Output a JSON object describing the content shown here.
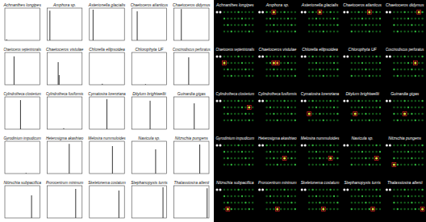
{
  "chart_data": [
    {
      "type": "bar",
      "title": "Achnanthes longipes",
      "x": [
        2
      ],
      "values": [
        3
      ],
      "xlim": [
        0,
        38
      ],
      "ylim": [
        0,
        100
      ],
      "color": "#3a3a3a",
      "tick_labels": false
    },
    {
      "type": "bar",
      "title": "Amphora sp.",
      "x": [
        3
      ],
      "values": [
        92
      ],
      "xlim": [
        0,
        38
      ],
      "ylim": [
        0,
        100
      ],
      "color": "#3a3a3a",
      "tick_labels": false
    },
    {
      "type": "bar",
      "title": "Asterionella glacialis",
      "x": [
        4
      ],
      "values": [
        95
      ],
      "xlim": [
        0,
        38
      ],
      "ylim": [
        0,
        100
      ],
      "color": "#3a3a3a",
      "tick_labels": false
    },
    {
      "type": "bar",
      "title": "Chaetoceros atlanticus",
      "x": [
        6
      ],
      "values": [
        90
      ],
      "xlim": [
        0,
        38
      ],
      "ylim": [
        0,
        100
      ],
      "color": "#3a3a3a",
      "tick_labels": false
    },
    {
      "type": "bar",
      "title": "Chaetoceros didymus",
      "x": [
        8
      ],
      "values": [
        97
      ],
      "xlim": [
        0,
        38
      ],
      "ylim": [
        0,
        100
      ],
      "color": "#3a3a3a",
      "tick_labels": false
    },
    {
      "type": "bar",
      "title": "Chaetoceros septentrionalis",
      "x": [
        10
      ],
      "values": [
        88
      ],
      "xlim": [
        0,
        38
      ],
      "ylim": [
        0,
        100
      ],
      "color": "#3a3a3a",
      "tick_labels": false
    },
    {
      "type": "bar",
      "title": "Chaetoceros vistulae",
      "x": [
        12,
        13
      ],
      "values": [
        70,
        30
      ],
      "xlim": [
        0,
        38
      ],
      "ylim": [
        0,
        100
      ],
      "color": "#3a3a3a",
      "tick_labels": false
    },
    {
      "type": "bar",
      "title": "Chlorella ellipsoidea",
      "x": [
        14
      ],
      "values": [
        3
      ],
      "xlim": [
        0,
        38
      ],
      "ylim": [
        0,
        100
      ],
      "color": "#3a3a3a",
      "tick_labels": false
    },
    {
      "type": "bar",
      "title": "Chlorophyta UF",
      "x": [
        15
      ],
      "values": [
        2
      ],
      "xlim": [
        0,
        38
      ],
      "ylim": [
        0,
        100
      ],
      "color": "#3a3a3a",
      "tick_labels": false
    },
    {
      "type": "bar",
      "title": "Coscinodiscus perforatus",
      "x": [
        16
      ],
      "values": [
        85
      ],
      "xlim": [
        0,
        38
      ],
      "ylim": [
        0,
        100
      ],
      "color": "#3a3a3a",
      "tick_labels": false
    },
    {
      "type": "bar",
      "title": "Cylindrotheca closterium",
      "x": [
        17
      ],
      "values": [
        90
      ],
      "xlim": [
        0,
        38
      ],
      "ylim": [
        0,
        100
      ],
      "color": "#3a3a3a",
      "tick_labels": false
    },
    {
      "type": "bar",
      "title": "Cylindrotheca fusiformis",
      "x": [
        18
      ],
      "values": [
        3
      ],
      "xlim": [
        0,
        38
      ],
      "ylim": [
        0,
        100
      ],
      "color": "#3a3a3a",
      "tick_labels": false
    },
    {
      "type": "bar",
      "title": "Cymatosira lorenziana",
      "x": [
        19
      ],
      "values": [
        93
      ],
      "xlim": [
        0,
        38
      ],
      "ylim": [
        0,
        100
      ],
      "color": "#3a3a3a",
      "tick_labels": false
    },
    {
      "type": "bar",
      "title": "Ditylum brightwellii",
      "x": [
        20
      ],
      "values": [
        88
      ],
      "xlim": [
        0,
        38
      ],
      "ylim": [
        0,
        100
      ],
      "color": "#3a3a3a",
      "tick_labels": false
    },
    {
      "type": "bar",
      "title": "Guinardia gigas",
      "x": [
        22
      ],
      "values": [
        80
      ],
      "xlim": [
        0,
        38
      ],
      "ylim": [
        0,
        100
      ],
      "color": "#3a3a3a",
      "tick_labels": false
    },
    {
      "type": "bar",
      "title": "Gyrodinium impudicum",
      "x": [
        23
      ],
      "values": [
        2
      ],
      "xlim": [
        0,
        38
      ],
      "ylim": [
        0,
        100
      ],
      "color": "#3a3a3a",
      "tick_labels": false
    },
    {
      "type": "bar",
      "title": "Heterosigma akashiwo",
      "x": [
        24
      ],
      "values": [
        92
      ],
      "xlim": [
        0,
        38
      ],
      "ylim": [
        0,
        100
      ],
      "color": "#3a3a3a",
      "tick_labels": false
    },
    {
      "type": "bar",
      "title": "Melosira nummuloides",
      "x": [
        25
      ],
      "values": [
        85
      ],
      "xlim": [
        0,
        38
      ],
      "ylim": [
        0,
        100
      ],
      "color": "#3a3a3a",
      "tick_labels": false
    },
    {
      "type": "bar",
      "title": "Navicula sp.",
      "x": [
        26
      ],
      "values": [
        75
      ],
      "xlim": [
        0,
        38
      ],
      "ylim": [
        0,
        100
      ],
      "color": "#3a3a3a",
      "tick_labels": false
    },
    {
      "type": "bar",
      "title": "Nitzschia pungens",
      "x": [
        28
      ],
      "values": [
        90
      ],
      "xlim": [
        0,
        38
      ],
      "ylim": [
        0,
        100
      ],
      "color": "#3a3a3a",
      "tick_labels": false
    },
    {
      "type": "bar",
      "title": "Nitzschia subpacifica",
      "x": [
        29
      ],
      "values": [
        70
      ],
      "xlim": [
        0,
        38
      ],
      "ylim": [
        0,
        100
      ],
      "color": "#3a3a3a",
      "tick_labels": false
    },
    {
      "type": "bar",
      "title": "Prorocentrum minimum",
      "x": [
        31
      ],
      "values": [
        90
      ],
      "xlim": [
        0,
        38
      ],
      "ylim": [
        0,
        100
      ],
      "color": "#3a3a3a",
      "tick_labels": false
    },
    {
      "type": "bar",
      "title": "Skeletonema costatum",
      "x": [
        32
      ],
      "values": [
        85
      ],
      "xlim": [
        0,
        38
      ],
      "ylim": [
        0,
        100
      ],
      "color": "#3a3a3a",
      "tick_labels": false
    },
    {
      "type": "bar",
      "title": "Stephanopyxis turris",
      "x": [
        34
      ],
      "values": [
        95
      ],
      "xlim": [
        0,
        38
      ],
      "ylim": [
        0,
        100
      ],
      "color": "#3a3a3a",
      "tick_labels": false
    },
    {
      "type": "bar",
      "title": "Thalassiosira allenii",
      "x": [
        36
      ],
      "values": [
        92
      ],
      "xlim": [
        0,
        38
      ],
      "ylim": [
        0,
        100
      ],
      "color": "#3a3a3a",
      "tick_labels": false
    }
  ],
  "arrays": [
    {
      "title": "Achnanthes longipes",
      "positive_probes": []
    },
    {
      "title": "Amphora sp.",
      "positive_probes": [
        3
      ]
    },
    {
      "title": "Asterionella glacialis",
      "positive_probes": [
        4
      ]
    },
    {
      "title": "Chaetoceros atlanticus",
      "positive_probes": [
        6
      ]
    },
    {
      "title": "Chaetoceros didymus",
      "positive_probes": [
        8
      ]
    },
    {
      "title": "Chaetoceros septentrionalis",
      "positive_probes": [
        10
      ]
    },
    {
      "title": "Chaetoceros vistulae",
      "positive_probes": [
        12,
        13
      ]
    },
    {
      "title": "Chlorella ellipsoidea",
      "positive_probes": []
    },
    {
      "title": "Chlorophyta UF",
      "positive_probes": []
    },
    {
      "title": "Coscinodiscus perforatus",
      "positive_probes": [
        16
      ]
    },
    {
      "title": "Cylindrotheca closterium",
      "positive_probes": [
        17
      ]
    },
    {
      "title": "Cylindrotheca fusiformis",
      "positive_probes": []
    },
    {
      "title": "Cymatosira lorenziana",
      "positive_probes": [
        19
      ]
    },
    {
      "title": "Ditylum brightwellii",
      "positive_probes": [
        20
      ]
    },
    {
      "title": "Guinardia gigas",
      "positive_probes": [
        22
      ]
    },
    {
      "title": "Gyrodinium impudicum",
      "positive_probes": []
    },
    {
      "title": "Heterosigma akashiwo",
      "positive_probes": [
        24
      ]
    },
    {
      "title": "Melosira nummuloides",
      "positive_probes": [
        25
      ]
    },
    {
      "title": "Navicula sp.",
      "positive_probes": [
        26
      ]
    },
    {
      "title": "Nitzschia pungens",
      "positive_probes": [
        28
      ]
    },
    {
      "title": "Nitzschia subpacifica",
      "positive_probes": [
        29
      ]
    },
    {
      "title": "Prorocentrum minimum",
      "positive_probes": [
        31
      ]
    },
    {
      "title": "Skeletonema costatum",
      "positive_probes": [
        32
      ]
    },
    {
      "title": "Stephanopyxis turris",
      "positive_probes": [
        34
      ]
    },
    {
      "title": "Thalassiosira allenii",
      "positive_probes": [
        36
      ]
    }
  ]
}
